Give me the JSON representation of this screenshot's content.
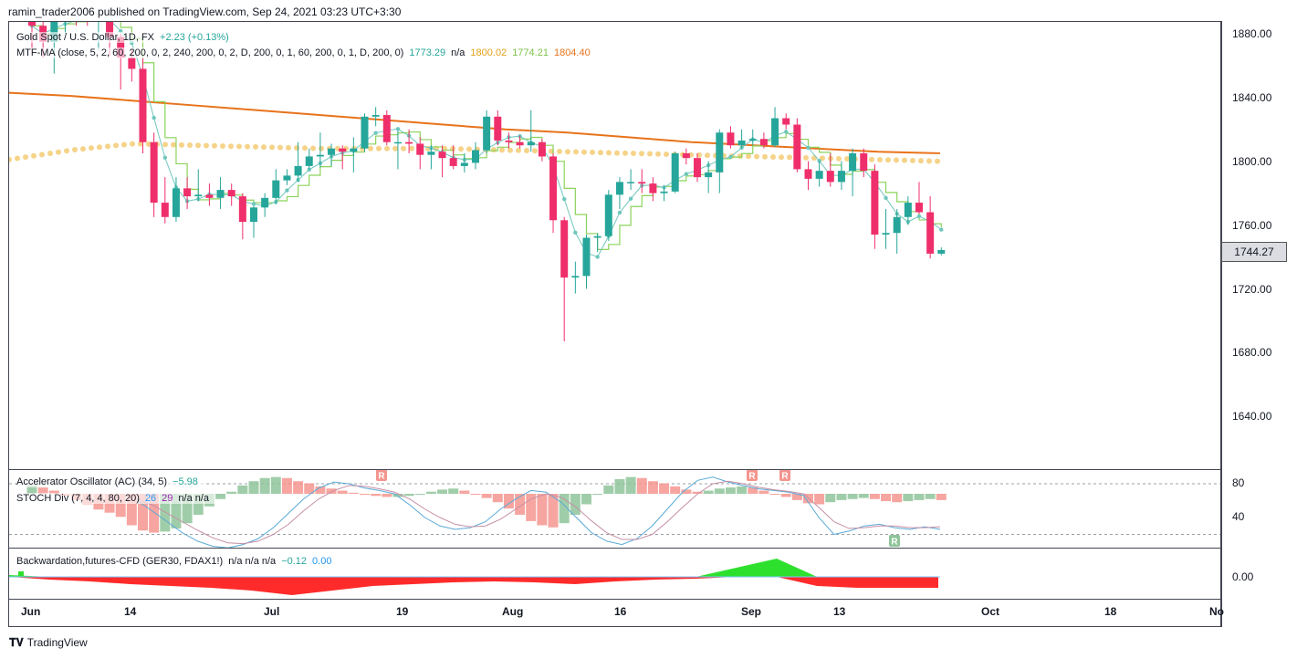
{
  "header": {
    "publisher": "ramin_trader2006 published on TradingView.com, Sep 24, 2021 03:23 UTC+3:30"
  },
  "main_legend": {
    "symbol": "Gold Spot / U.S. Dollar, 1D, FX",
    "change": "+2.23 (+0.13%)",
    "mtf_label": "MTF-MA (close, 5, 2, 60, 200, 0, 2, 240, 200, 0, 2, D, 200, 0, 1, 60, 200, 0, 1, D, 200, 0)",
    "mtf_v1": "1773.29",
    "mtf_na": "n/a",
    "mtf_v2": "1800.02",
    "mtf_v3": "1774.21",
    "mtf_v4": "1804.40"
  },
  "ac_legend": {
    "label": "Accelerator Oscillator (AC) (34, 5)",
    "value": "−5.98"
  },
  "stoch_legend": {
    "label": "STOCH Div (7, 4, 4, 80, 20)",
    "k": "26",
    "d": "29",
    "na": "n/a n/a"
  },
  "bw_legend": {
    "label": "Backwardation,futures-CFD (GER30, FDAX1!)",
    "na": "n/a n/a n/a",
    "v1": "−0.12",
    "v2": "0.00"
  },
  "price_tag": "1744.27",
  "y_axis": [
    "1880.00",
    "1840.00",
    "1800.00",
    "1760.00",
    "1720.00",
    "1680.00",
    "1640.00"
  ],
  "osc_axis": [
    "80",
    "40"
  ],
  "bw_axis": [
    "0.00"
  ],
  "x_axis": [
    "Jun",
    "14",
    "Jul",
    "19",
    "Aug",
    "16",
    "Sep",
    "13",
    "Oct",
    "18",
    "No"
  ],
  "divergence_marker": "R",
  "brand": "TradingView",
  "colors": {
    "up": "#26a69a",
    "down": "#ef2f6b",
    "orange": "#e8731b",
    "dots": "#f5d389",
    "green_step": "#8bd35a",
    "teal_ma": "#6fc7bd",
    "ac_up": "#8fc49a",
    "ac_down": "#f4958f",
    "bw_red": "#ff2b2b",
    "bw_green": "#2ee02e"
  },
  "chart_data": {
    "type": "candlestick",
    "y_range": [
      1620,
      1890
    ],
    "candles": [
      {
        "date": "2021-06-02",
        "o": 1890,
        "h": 1895,
        "l": 1870,
        "c": 1885
      },
      {
        "date": "2021-06-03",
        "o": 1885,
        "h": 1890,
        "l": 1865,
        "c": 1875
      },
      {
        "date": "2021-06-04",
        "o": 1875,
        "h": 1895,
        "l": 1855,
        "c": 1890
      },
      {
        "date": "2021-06-07",
        "o": 1890,
        "h": 1900,
        "l": 1880,
        "c": 1895
      },
      {
        "date": "2021-06-08",
        "o": 1895,
        "h": 1900,
        "l": 1885,
        "c": 1893
      },
      {
        "date": "2021-06-09",
        "o": 1893,
        "h": 1900,
        "l": 1885,
        "c": 1888
      },
      {
        "date": "2021-06-10",
        "o": 1888,
        "h": 1900,
        "l": 1870,
        "c": 1896
      },
      {
        "date": "2021-06-11",
        "o": 1896,
        "h": 1898,
        "l": 1866,
        "c": 1878
      },
      {
        "date": "2021-06-14",
        "o": 1878,
        "h": 1880,
        "l": 1845,
        "c": 1865
      },
      {
        "date": "2021-06-15",
        "o": 1865,
        "h": 1870,
        "l": 1850,
        "c": 1858
      },
      {
        "date": "2021-06-16",
        "o": 1858,
        "h": 1865,
        "l": 1805,
        "c": 1812
      },
      {
        "date": "2021-06-17",
        "o": 1812,
        "h": 1818,
        "l": 1765,
        "c": 1774
      },
      {
        "date": "2021-06-18",
        "o": 1774,
        "h": 1790,
        "l": 1761,
        "c": 1765
      },
      {
        "date": "2021-06-21",
        "o": 1765,
        "h": 1790,
        "l": 1762,
        "c": 1783
      },
      {
        "date": "2021-06-22",
        "o": 1783,
        "h": 1790,
        "l": 1770,
        "c": 1778
      },
      {
        "date": "2021-06-23",
        "o": 1778,
        "h": 1795,
        "l": 1775,
        "c": 1779
      },
      {
        "date": "2021-06-24",
        "o": 1779,
        "h": 1786,
        "l": 1772,
        "c": 1777
      },
      {
        "date": "2021-06-25",
        "o": 1777,
        "h": 1790,
        "l": 1770,
        "c": 1782
      },
      {
        "date": "2021-06-28",
        "o": 1782,
        "h": 1786,
        "l": 1772,
        "c": 1778
      },
      {
        "date": "2021-06-29",
        "o": 1778,
        "h": 1780,
        "l": 1751,
        "c": 1762
      },
      {
        "date": "2021-06-30",
        "o": 1762,
        "h": 1772,
        "l": 1752,
        "c": 1771
      },
      {
        "date": "2021-07-01",
        "o": 1771,
        "h": 1780,
        "l": 1765,
        "c": 1777
      },
      {
        "date": "2021-07-02",
        "o": 1777,
        "h": 1795,
        "l": 1773,
        "c": 1788
      },
      {
        "date": "2021-07-05",
        "o": 1788,
        "h": 1795,
        "l": 1785,
        "c": 1791
      },
      {
        "date": "2021-07-06",
        "o": 1791,
        "h": 1812,
        "l": 1787,
        "c": 1797
      },
      {
        "date": "2021-07-07",
        "o": 1797,
        "h": 1808,
        "l": 1795,
        "c": 1803
      },
      {
        "date": "2021-07-08",
        "o": 1803,
        "h": 1818,
        "l": 1796,
        "c": 1804
      },
      {
        "date": "2021-07-09",
        "o": 1804,
        "h": 1811,
        "l": 1797,
        "c": 1808
      },
      {
        "date": "2021-07-12",
        "o": 1808,
        "h": 1810,
        "l": 1795,
        "c": 1806
      },
      {
        "date": "2021-07-13",
        "o": 1806,
        "h": 1815,
        "l": 1793,
        "c": 1808
      },
      {
        "date": "2021-07-14",
        "o": 1808,
        "h": 1830,
        "l": 1806,
        "c": 1828
      },
      {
        "date": "2021-07-15",
        "o": 1828,
        "h": 1834,
        "l": 1822,
        "c": 1829
      },
      {
        "date": "2021-07-16",
        "o": 1829,
        "h": 1832,
        "l": 1810,
        "c": 1812
      },
      {
        "date": "2021-07-19",
        "o": 1812,
        "h": 1819,
        "l": 1795,
        "c": 1812
      },
      {
        "date": "2021-07-20",
        "o": 1812,
        "h": 1820,
        "l": 1805,
        "c": 1811
      },
      {
        "date": "2021-07-21",
        "o": 1811,
        "h": 1815,
        "l": 1795,
        "c": 1804
      },
      {
        "date": "2021-07-22",
        "o": 1804,
        "h": 1810,
        "l": 1795,
        "c": 1806
      },
      {
        "date": "2021-07-23",
        "o": 1806,
        "h": 1810,
        "l": 1790,
        "c": 1802
      },
      {
        "date": "2021-07-26",
        "o": 1802,
        "h": 1810,
        "l": 1795,
        "c": 1797
      },
      {
        "date": "2021-07-27",
        "o": 1797,
        "h": 1805,
        "l": 1793,
        "c": 1799
      },
      {
        "date": "2021-07-28",
        "o": 1799,
        "h": 1812,
        "l": 1795,
        "c": 1807
      },
      {
        "date": "2021-07-29",
        "o": 1807,
        "h": 1832,
        "l": 1805,
        "c": 1828
      },
      {
        "date": "2021-07-30",
        "o": 1828,
        "h": 1832,
        "l": 1810,
        "c": 1813
      },
      {
        "date": "2021-08-02",
        "o": 1813,
        "h": 1818,
        "l": 1808,
        "c": 1812
      },
      {
        "date": "2021-08-03",
        "o": 1812,
        "h": 1816,
        "l": 1808,
        "c": 1810
      },
      {
        "date": "2021-08-04",
        "o": 1810,
        "h": 1832,
        "l": 1806,
        "c": 1812
      },
      {
        "date": "2021-08-05",
        "o": 1812,
        "h": 1814,
        "l": 1800,
        "c": 1803
      },
      {
        "date": "2021-08-06",
        "o": 1803,
        "h": 1805,
        "l": 1755,
        "c": 1763
      },
      {
        "date": "2021-08-09",
        "o": 1763,
        "h": 1765,
        "l": 1687,
        "c": 1727
      },
      {
        "date": "2021-08-10",
        "o": 1727,
        "h": 1737,
        "l": 1717,
        "c": 1728
      },
      {
        "date": "2021-08-11",
        "o": 1728,
        "h": 1754,
        "l": 1720,
        "c": 1752
      },
      {
        "date": "2021-08-12",
        "o": 1752,
        "h": 1755,
        "l": 1743,
        "c": 1753
      },
      {
        "date": "2021-08-13",
        "o": 1753,
        "h": 1782,
        "l": 1750,
        "c": 1779
      },
      {
        "date": "2021-08-16",
        "o": 1779,
        "h": 1790,
        "l": 1770,
        "c": 1787
      },
      {
        "date": "2021-08-17",
        "o": 1787,
        "h": 1795,
        "l": 1782,
        "c": 1787
      },
      {
        "date": "2021-08-18",
        "o": 1787,
        "h": 1795,
        "l": 1780,
        "c": 1786
      },
      {
        "date": "2021-08-19",
        "o": 1786,
        "h": 1790,
        "l": 1775,
        "c": 1780
      },
      {
        "date": "2021-08-20",
        "o": 1780,
        "h": 1785,
        "l": 1775,
        "c": 1781
      },
      {
        "date": "2021-08-23",
        "o": 1781,
        "h": 1806,
        "l": 1780,
        "c": 1805
      },
      {
        "date": "2021-08-24",
        "o": 1805,
        "h": 1808,
        "l": 1798,
        "c": 1802
      },
      {
        "date": "2021-08-25",
        "o": 1802,
        "h": 1805,
        "l": 1787,
        "c": 1790
      },
      {
        "date": "2021-08-26",
        "o": 1790,
        "h": 1800,
        "l": 1780,
        "c": 1793
      },
      {
        "date": "2021-08-27",
        "o": 1793,
        "h": 1820,
        "l": 1780,
        "c": 1818
      },
      {
        "date": "2021-08-30",
        "o": 1818,
        "h": 1822,
        "l": 1808,
        "c": 1810
      },
      {
        "date": "2021-08-31",
        "o": 1810,
        "h": 1820,
        "l": 1808,
        "c": 1813
      },
      {
        "date": "2021-09-01",
        "o": 1813,
        "h": 1820,
        "l": 1810,
        "c": 1814
      },
      {
        "date": "2021-09-02",
        "o": 1814,
        "h": 1818,
        "l": 1808,
        "c": 1810
      },
      {
        "date": "2021-09-03",
        "o": 1810,
        "h": 1834,
        "l": 1809,
        "c": 1827
      },
      {
        "date": "2021-09-06",
        "o": 1827,
        "h": 1830,
        "l": 1820,
        "c": 1823
      },
      {
        "date": "2021-09-07",
        "o": 1823,
        "h": 1827,
        "l": 1793,
        "c": 1795
      },
      {
        "date": "2021-09-08",
        "o": 1795,
        "h": 1800,
        "l": 1782,
        "c": 1789
      },
      {
        "date": "2021-09-09",
        "o": 1789,
        "h": 1800,
        "l": 1784,
        "c": 1794
      },
      {
        "date": "2021-09-10",
        "o": 1794,
        "h": 1805,
        "l": 1784,
        "c": 1787
      },
      {
        "date": "2021-09-13",
        "o": 1787,
        "h": 1800,
        "l": 1782,
        "c": 1794
      },
      {
        "date": "2021-09-14",
        "o": 1794,
        "h": 1808,
        "l": 1778,
        "c": 1805
      },
      {
        "date": "2021-09-15",
        "o": 1805,
        "h": 1808,
        "l": 1790,
        "c": 1794
      },
      {
        "date": "2021-09-16",
        "o": 1794,
        "h": 1798,
        "l": 1745,
        "c": 1754
      },
      {
        "date": "2021-09-17",
        "o": 1754,
        "h": 1770,
        "l": 1745,
        "c": 1755
      },
      {
        "date": "2021-09-20",
        "o": 1755,
        "h": 1770,
        "l": 1742,
        "c": 1765
      },
      {
        "date": "2021-09-21",
        "o": 1765,
        "h": 1778,
        "l": 1760,
        "c": 1774
      },
      {
        "date": "2021-09-22",
        "o": 1774,
        "h": 1787,
        "l": 1767,
        "c": 1768
      },
      {
        "date": "2021-09-23",
        "o": 1768,
        "h": 1778,
        "l": 1739,
        "c": 1742
      },
      {
        "date": "2021-09-24",
        "o": 1742,
        "h": 1746,
        "l": 1741,
        "c": 1744.27
      }
    ],
    "mtf_ma_orange": [
      1843,
      1841,
      1838,
      1835,
      1832,
      1829,
      1826,
      1823,
      1820,
      1818,
      1815,
      1812,
      1810,
      1808,
      1806,
      1805
    ],
    "mtf_ma_dots": [
      1801,
      1807,
      1811,
      1810,
      1809,
      1808,
      1808,
      1808,
      1807,
      1806,
      1805,
      1804,
      1803,
      1802,
      1801,
      1800
    ],
    "ac_histogram": [
      8,
      6,
      3,
      -2,
      -6,
      -10,
      -15,
      -18,
      -22,
      -30,
      -35,
      -37,
      -36,
      -33,
      -28,
      -20,
      -12,
      -5,
      2,
      8,
      12,
      15,
      16,
      15,
      12,
      10,
      7,
      5,
      3,
      1,
      -1,
      -2,
      -3,
      -3,
      -2,
      0,
      2,
      4,
      5,
      3,
      0,
      -4,
      -8,
      -14,
      -20,
      -26,
      -30,
      -32,
      -28,
      -20,
      -10,
      0,
      8,
      14,
      16,
      15,
      12,
      10,
      7,
      4,
      2,
      3,
      5,
      6,
      7,
      6,
      3,
      0,
      -3,
      -6,
      -9,
      -10,
      -8,
      -6,
      -5,
      -4,
      -5,
      -7,
      -8,
      -7,
      -6,
      -5,
      -6
    ],
    "stoch_k": [
      60,
      48,
      35,
      22,
      12,
      6,
      4,
      8,
      15,
      28,
      45,
      62,
      75,
      82,
      80,
      75,
      72,
      68,
      55,
      40,
      30,
      26,
      28,
      35,
      50,
      62,
      72,
      70,
      58,
      40,
      22,
      12,
      8,
      15,
      30,
      50,
      70,
      84,
      88,
      82,
      78,
      74,
      72,
      70,
      66,
      40,
      20,
      24,
      30,
      32,
      28,
      26,
      29,
      26
    ],
    "stoch_d": [
      62,
      55,
      45,
      35,
      25,
      16,
      10,
      9,
      12,
      20,
      32,
      48,
      62,
      72,
      78,
      77,
      74,
      70,
      62,
      50,
      40,
      32,
      29,
      30,
      38,
      50,
      62,
      68,
      64,
      52,
      36,
      22,
      14,
      14,
      20,
      35,
      52,
      68,
      80,
      83,
      80,
      76,
      73,
      71,
      68,
      52,
      35,
      27,
      28,
      30,
      30,
      28,
      28,
      29
    ],
    "backwardation": [
      0.02,
      -0.03,
      -0.05,
      -0.08,
      -0.1,
      -0.12,
      -0.15,
      -0.2,
      -0.15,
      -0.1,
      -0.08,
      -0.06,
      -0.05,
      -0.06,
      -0.08,
      -0.05,
      -0.03,
      -0.02,
      0.1,
      0.2,
      -0.1,
      -0.12,
      -0.12,
      -0.12
    ]
  }
}
